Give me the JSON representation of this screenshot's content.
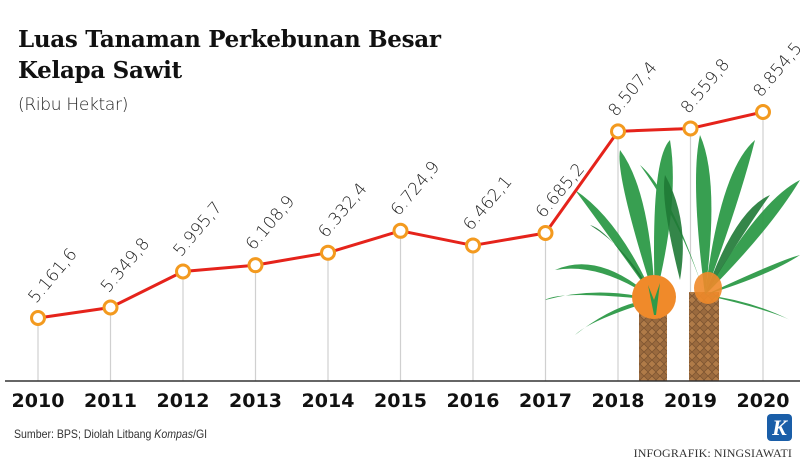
{
  "header": {
    "title_line1": "Luas Tanaman Perkebunan Besar",
    "title_line2": "Kelapa Sawit",
    "subtitle": "(Ribu Hektar)"
  },
  "footer": {
    "source_prefix": "Sumber: BPS; Diolah Litbang ",
    "source_italic": "Kompas",
    "source_suffix": "/GI",
    "credit": "INFOGRAFIK: NINGSIAWATI",
    "logo_letter": "K"
  },
  "colors": {
    "line": "#e5231b",
    "marker_ring": "#f39a1f",
    "marker_fill": "#ffffff",
    "gridline": "#d0d0d0",
    "axis": "#333333",
    "logo": "#1a5ea8",
    "palm_green": "#2e9a48",
    "palm_dark": "#1f7a36",
    "trunk": "#9a6a3e",
    "fruit": "#f08a2a"
  },
  "chart_data": {
    "type": "line",
    "title": "Luas Tanaman Perkebunan Besar Kelapa Sawit",
    "subtitle": "(Ribu Hektar)",
    "xlabel": "",
    "ylabel": "Ribu Hektar",
    "categories": [
      "2010",
      "2011",
      "2012",
      "2013",
      "2014",
      "2015",
      "2016",
      "2017",
      "2018",
      "2019",
      "2020"
    ],
    "values": [
      5161.6,
      5349.8,
      5995.7,
      6108.9,
      6332.4,
      6724.9,
      6462.1,
      6685.2,
      8507.4,
      8559.8,
      8854.5
    ],
    "labels": [
      "5.161,6",
      "5.349,8",
      "5.995,7",
      "6.108,9",
      "6.332,4",
      "6.724,9",
      "6.462,1",
      "6.685,2",
      "8.507,4",
      "8.559,8",
      "8.854,5"
    ],
    "grid": "vertical drop lines per point",
    "legend": "none"
  }
}
